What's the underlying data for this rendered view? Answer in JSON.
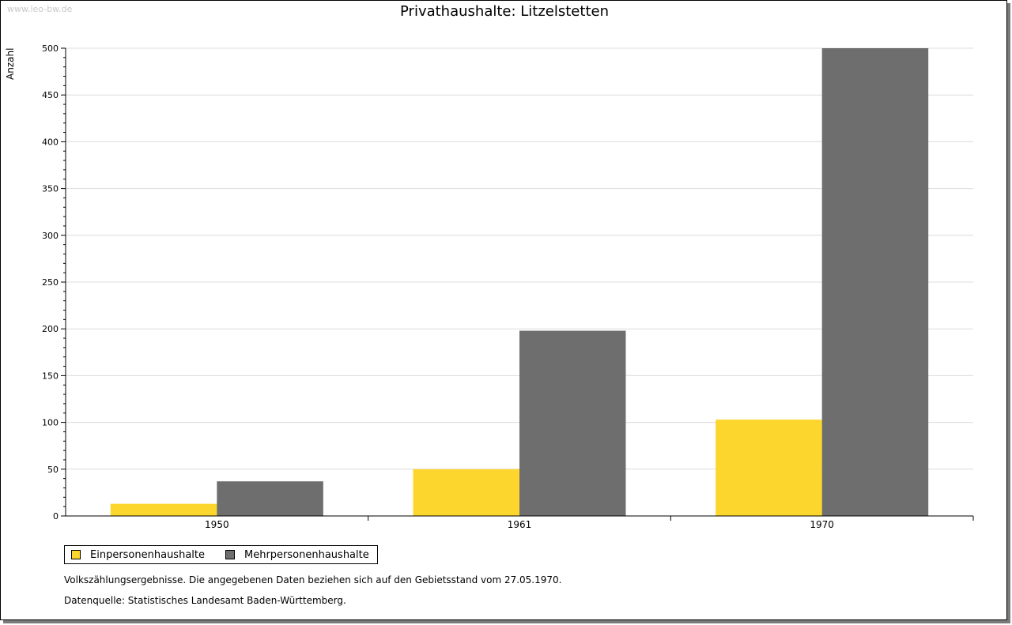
{
  "watermark": "www.leo-bw.de",
  "notes": [
    "Volkszählungsergebnisse. Die angegebenen Daten beziehen sich auf den Gebietsstand vom 27.05.1970.",
    "Datenquelle: Statistisches Landesamt Baden-Württemberg."
  ],
  "chart_data": {
    "type": "bar",
    "title": "Privathaushalte: Litzelstetten",
    "xlabel": "",
    "ylabel": "Anzahl",
    "ylim": [
      0,
      500
    ],
    "yticks": [
      0,
      50,
      100,
      150,
      200,
      250,
      300,
      350,
      400,
      450,
      500
    ],
    "grid": true,
    "legend_position": "bottom-left",
    "categories": [
      "1950",
      "1961",
      "1970"
    ],
    "series": [
      {
        "name": "Einpersonenhaushalte",
        "color": "#fcd62c",
        "values": [
          13,
          50,
          103
        ]
      },
      {
        "name": "Mehrpersonenhaushalte",
        "color": "#6e6e6e",
        "values": [
          37,
          198,
          500
        ]
      }
    ]
  }
}
